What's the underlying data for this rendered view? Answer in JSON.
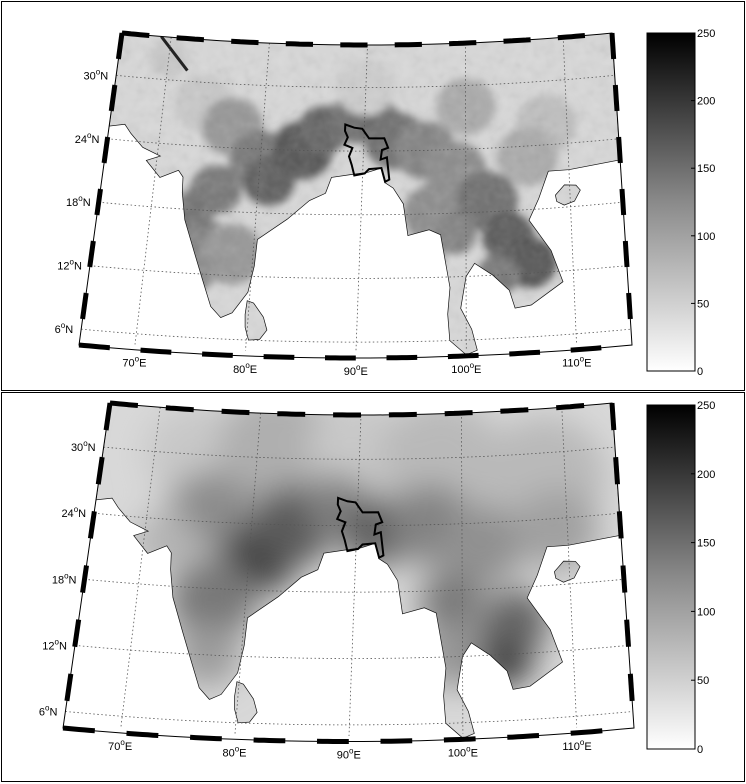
{
  "panels": [
    {
      "name": "top",
      "field": "fine",
      "lat_labels": [
        {
          "text": "30",
          "deg": "o",
          "hemi": "N"
        },
        {
          "text": "24",
          "deg": "o",
          "hemi": "N"
        },
        {
          "text": "18",
          "deg": "o",
          "hemi": "N"
        },
        {
          "text": "12",
          "deg": "o",
          "hemi": "N"
        },
        {
          "text": "6",
          "deg": "o",
          "hemi": "N"
        }
      ],
      "lon_labels": [
        {
          "text": "70",
          "deg": "o",
          "hemi": "E"
        },
        {
          "text": "80",
          "deg": "o",
          "hemi": "E"
        },
        {
          "text": "90",
          "deg": "o",
          "hemi": "E"
        },
        {
          "text": "100",
          "deg": "o",
          "hemi": "E"
        },
        {
          "text": "110",
          "deg": "o",
          "hemi": "E"
        }
      ],
      "colorbar": {
        "min": 0,
        "max": 250,
        "ticks": [
          "0",
          "50",
          "100",
          "150",
          "200",
          "250"
        ]
      }
    },
    {
      "name": "bottom",
      "field": "smooth",
      "lat_labels": [
        {
          "text": "30",
          "deg": "o",
          "hemi": "N"
        },
        {
          "text": "24",
          "deg": "o",
          "hemi": "N"
        },
        {
          "text": "18",
          "deg": "o",
          "hemi": "N"
        },
        {
          "text": "12",
          "deg": "o",
          "hemi": "N"
        },
        {
          "text": "6",
          "deg": "o",
          "hemi": "N"
        }
      ],
      "lon_labels": [
        {
          "text": "70",
          "deg": "o",
          "hemi": "E"
        },
        {
          "text": "80",
          "deg": "o",
          "hemi": "E"
        },
        {
          "text": "90",
          "deg": "o",
          "hemi": "E"
        },
        {
          "text": "100",
          "deg": "o",
          "hemi": "E"
        },
        {
          "text": "110",
          "deg": "o",
          "hemi": "E"
        }
      ],
      "colorbar": {
        "min": 0,
        "max": 250,
        "ticks": [
          "0",
          "50",
          "100",
          "150",
          "200",
          "250"
        ]
      }
    }
  ],
  "colors": {
    "ocean": "#ffffff",
    "grid": "#555555",
    "border": "#000000",
    "land_light": "#e6e6e6",
    "land_dark": "#1e1e1e"
  }
}
